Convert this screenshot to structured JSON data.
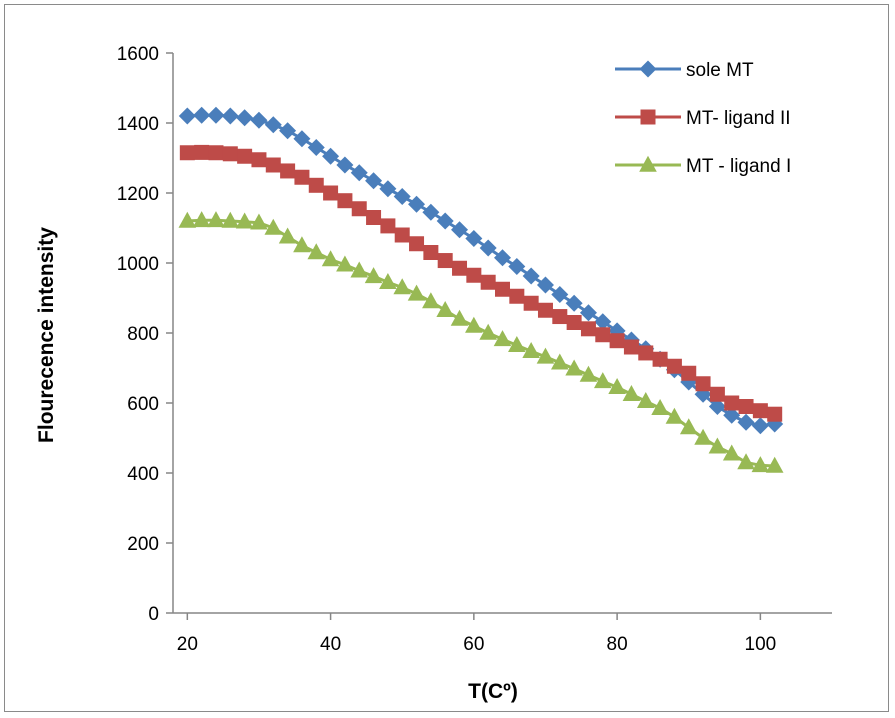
{
  "chart_data": {
    "type": "line",
    "title": "",
    "xlabel": "T(Cº)",
    "ylabel": "Flourecence intensity",
    "xlim": [
      18,
      110
    ],
    "ylim": [
      0,
      1600
    ],
    "xticks": [
      20,
      40,
      60,
      80,
      100
    ],
    "yticks": [
      0,
      200,
      400,
      600,
      800,
      1000,
      1200,
      1400,
      1600
    ],
    "grid": false,
    "legend_position": "top-right",
    "x": [
      20,
      22,
      24,
      26,
      28,
      30,
      32,
      34,
      36,
      38,
      40,
      42,
      44,
      46,
      48,
      50,
      52,
      54,
      56,
      58,
      60,
      62,
      64,
      66,
      68,
      70,
      72,
      74,
      76,
      78,
      80,
      82,
      84,
      86,
      88,
      90,
      92,
      94,
      96,
      98,
      100,
      102
    ],
    "series": [
      {
        "name": "sole MT",
        "color": "#4a7ebb",
        "marker": "diamond",
        "values": [
          1420,
          1422,
          1422,
          1420,
          1415,
          1408,
          1395,
          1378,
          1355,
          1330,
          1305,
          1280,
          1258,
          1235,
          1212,
          1190,
          1168,
          1145,
          1120,
          1095,
          1070,
          1043,
          1015,
          990,
          963,
          937,
          910,
          885,
          858,
          832,
          806,
          780,
          755,
          725,
          695,
          660,
          625,
          590,
          565,
          545,
          535,
          540
        ]
      },
      {
        "name": "MT- ligand II",
        "color": "#be4b48",
        "marker": "square",
        "values": [
          1315,
          1316,
          1315,
          1312,
          1305,
          1295,
          1280,
          1263,
          1245,
          1222,
          1200,
          1178,
          1155,
          1130,
          1106,
          1080,
          1055,
          1030,
          1007,
          985,
          965,
          945,
          925,
          905,
          885,
          865,
          847,
          830,
          812,
          795,
          778,
          760,
          743,
          725,
          705,
          685,
          655,
          625,
          600,
          590,
          578,
          568
        ]
      },
      {
        "name": "MT - ligand I",
        "color": "#98b954",
        "marker": "triangle",
        "values": [
          1120,
          1122,
          1122,
          1120,
          1118,
          1115,
          1100,
          1075,
          1050,
          1030,
          1010,
          995,
          978,
          962,
          945,
          930,
          912,
          890,
          865,
          840,
          820,
          800,
          782,
          765,
          748,
          732,
          715,
          698,
          680,
          662,
          645,
          625,
          605,
          585,
          560,
          530,
          500,
          475,
          455,
          430,
          422,
          420
        ]
      }
    ]
  }
}
